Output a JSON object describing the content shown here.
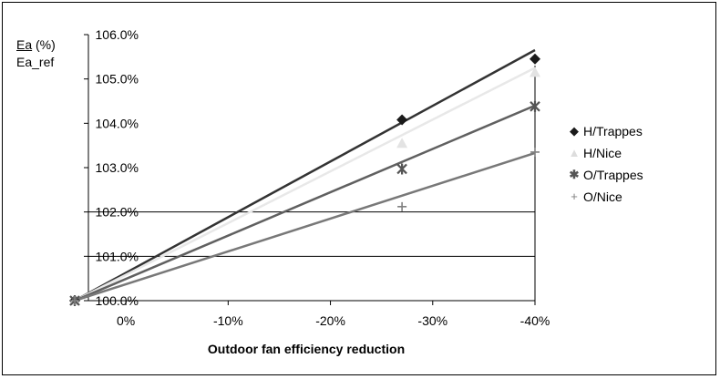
{
  "chart_data": {
    "type": "scatter",
    "xlabel": "Outdoor fan efficiency reduction",
    "ylabel_parts": {
      "numerator": "Ea",
      "unit": "(%)",
      "denominator": "Ea_ref"
    },
    "x_tick_labels": [
      "0%",
      "-10%",
      "-20%",
      "-30%",
      "-40%"
    ],
    "x_ticks": [
      0,
      -10,
      -20,
      -30,
      -40
    ],
    "y_tick_labels": [
      "100.0%",
      "101.0%",
      "102.0%",
      "103.0%",
      "104.0%",
      "105.0%",
      "106.0%"
    ],
    "y_ticks": [
      100,
      101,
      102,
      103,
      104,
      105,
      106
    ],
    "xlim": [
      5,
      -40
    ],
    "ylim": [
      100,
      106
    ],
    "gridlines_y": [
      101,
      102
    ],
    "legend_position": "right",
    "series": [
      {
        "name": "H/Trappes",
        "marker": "diamond",
        "marker_char": "◆",
        "color": "#1a1a1a",
        "x": [
          5,
          -27,
          -40
        ],
        "y": [
          100.0,
          104.08,
          105.45
        ],
        "trend": {
          "x": [
            5,
            -40
          ],
          "y": [
            100.0,
            105.65
          ]
        },
        "trend_color": "#333333"
      },
      {
        "name": "H/Nice",
        "marker": "triangle",
        "marker_char": "▲",
        "color": "#e3e3e3",
        "x": [
          5,
          -27,
          -40
        ],
        "y": [
          100.0,
          103.55,
          105.15
        ],
        "trend": {
          "x": [
            5,
            -40
          ],
          "y": [
            100.0,
            105.25
          ]
        },
        "trend_color": "#e8e8e8"
      },
      {
        "name": "O/Trappes",
        "marker": "star",
        "marker_char": "✱",
        "color": "#555555",
        "x": [
          5,
          -27,
          -40
        ],
        "y": [
          100.0,
          102.97,
          104.38
        ],
        "trend": {
          "x": [
            5,
            -40
          ],
          "y": [
            100.0,
            104.4
          ]
        },
        "trend_color": "#606060"
      },
      {
        "name": "O/Nice",
        "marker": "plus",
        "marker_char": "+",
        "color": "#808080",
        "x": [
          5,
          -27,
          -40
        ],
        "y": [
          100.0,
          102.12,
          103.35
        ],
        "trend": {
          "x": [
            5,
            -40
          ],
          "y": [
            100.0,
            103.33
          ]
        },
        "trend_color": "#787878"
      }
    ]
  }
}
